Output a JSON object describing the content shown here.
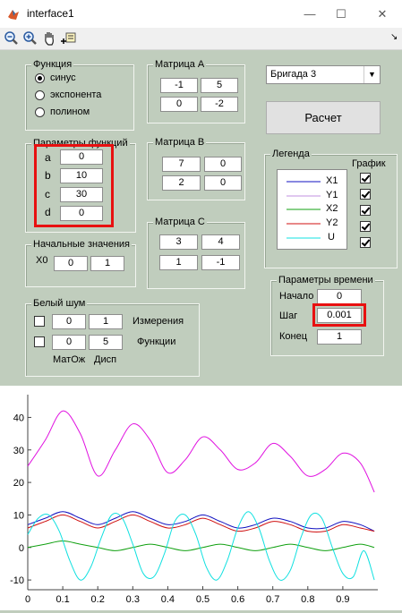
{
  "window": {
    "title": "interface1",
    "min_glyph": "—",
    "max_glyph": "☐",
    "close_glyph": "✕"
  },
  "toolbar": {
    "corner_glyph": "↘"
  },
  "func_group": {
    "title": "Функция",
    "options": [
      "синус",
      "экспонента",
      "полином"
    ],
    "selected_index": 0
  },
  "params_group": {
    "title": "Параметры функций",
    "labels": [
      "a",
      "b",
      "c",
      "d"
    ],
    "values": [
      "0",
      "10",
      "30",
      "0"
    ]
  },
  "initial_group": {
    "title": "Начальные значения",
    "label": "X0",
    "values": [
      "0",
      "1"
    ]
  },
  "noise_group": {
    "title": "Белый шум",
    "row1_label": "Измерения",
    "row2_label": "Функции",
    "row1_values": [
      "0",
      "1"
    ],
    "row2_values": [
      "0",
      "5"
    ],
    "col_label1": "МатОж",
    "col_label2": "Дисп"
  },
  "matrix_a": {
    "title": "Матрица А",
    "values": [
      "-1",
      "5",
      "0",
      "-2"
    ]
  },
  "matrix_b": {
    "title": "Матрица В",
    "values": [
      "7",
      "0",
      "2",
      "0"
    ]
  },
  "matrix_c": {
    "title": "Матрица С",
    "values": [
      "3",
      "4",
      "1",
      "-1"
    ]
  },
  "brigade": {
    "selected": "Бригада 3"
  },
  "calc_button": {
    "label": "Расчет"
  },
  "legend_group": {
    "title": "Легенда",
    "graph_label": "График",
    "items": [
      {
        "name": "X1",
        "color": "#1010c0"
      },
      {
        "name": "Y1",
        "color": "#c090e0"
      },
      {
        "name": "X2",
        "color": "#10a010"
      },
      {
        "name": "Y2",
        "color": "#d01010"
      },
      {
        "name": "U",
        "color": "#10e0e0"
      }
    ]
  },
  "time_group": {
    "title": "Параметры времени",
    "labels": [
      "Начало",
      "Шаг",
      "Конец"
    ],
    "values": [
      "0",
      "0.001",
      "1"
    ]
  },
  "chart_data": {
    "type": "line",
    "xlim": [
      0,
      1
    ],
    "ylim": [
      -13,
      47
    ],
    "xticks": [
      "0",
      "0.1",
      "0.2",
      "0.3",
      "0.4",
      "0.5",
      "0.6",
      "0.7",
      "0.8",
      "0.9"
    ],
    "yticks": [
      "40",
      "30",
      "20",
      "10",
      "0",
      "-10"
    ],
    "series": [
      {
        "color": "#e010e0",
        "x": [
          0,
          0.05,
          0.1,
          0.15,
          0.2,
          0.25,
          0.3,
          0.35,
          0.4,
          0.45,
          0.5,
          0.55,
          0.6,
          0.65,
          0.7,
          0.75,
          0.8,
          0.85,
          0.9,
          0.95,
          0.99
        ],
        "y": [
          25,
          33,
          42,
          35,
          22,
          30,
          38,
          33,
          23,
          27,
          34,
          30,
          24,
          26,
          32,
          28,
          22,
          24,
          29,
          26,
          17
        ]
      },
      {
        "color": "#1010c0",
        "x": [
          0,
          0.05,
          0.1,
          0.15,
          0.2,
          0.25,
          0.3,
          0.35,
          0.4,
          0.45,
          0.5,
          0.55,
          0.6,
          0.65,
          0.7,
          0.75,
          0.8,
          0.85,
          0.9,
          0.95,
          0.99
        ],
        "y": [
          7,
          9,
          11,
          9,
          7,
          9,
          11,
          9,
          7,
          8,
          10,
          8,
          6,
          7,
          9,
          8,
          6,
          6,
          8,
          7,
          5
        ]
      },
      {
        "color": "#d01010",
        "x": [
          0,
          0.05,
          0.1,
          0.15,
          0.2,
          0.25,
          0.3,
          0.35,
          0.4,
          0.45,
          0.5,
          0.55,
          0.6,
          0.65,
          0.7,
          0.75,
          0.8,
          0.85,
          0.9,
          0.95,
          0.99
        ],
        "y": [
          6,
          8,
          10,
          8,
          6,
          8,
          10,
          8,
          6,
          7,
          9,
          7,
          5,
          6,
          8,
          7,
          5,
          5,
          7,
          6,
          5
        ]
      },
      {
        "color": "#10a010",
        "x": [
          0,
          0.05,
          0.1,
          0.15,
          0.2,
          0.25,
          0.3,
          0.35,
          0.4,
          0.45,
          0.5,
          0.55,
          0.6,
          0.65,
          0.7,
          0.75,
          0.8,
          0.85,
          0.9,
          0.95,
          0.99
        ],
        "y": [
          0,
          1,
          2,
          1,
          0,
          -1,
          0,
          1,
          0,
          -1,
          0,
          1,
          0,
          -1,
          0,
          1,
          0,
          -1,
          0,
          1,
          0
        ]
      },
      {
        "color": "#10e0e0",
        "x": [
          0,
          0.03,
          0.06,
          0.09,
          0.12,
          0.15,
          0.18,
          0.21,
          0.24,
          0.27,
          0.3,
          0.33,
          0.36,
          0.39,
          0.42,
          0.45,
          0.48,
          0.51,
          0.54,
          0.57,
          0.6,
          0.63,
          0.66,
          0.69,
          0.72,
          0.75,
          0.78,
          0.81,
          0.84,
          0.87,
          0.9,
          0.93,
          0.96,
          0.99
        ],
        "y": [
          4,
          9,
          10,
          5,
          -4,
          -10,
          -6,
          3,
          10,
          9,
          1,
          -8,
          -9,
          -2,
          8,
          10,
          4,
          -6,
          -10,
          -4,
          6,
          11,
          6,
          -4,
          -10,
          -7,
          3,
          10,
          9,
          0,
          -8,
          -9,
          -1,
          -10
        ]
      }
    ]
  }
}
